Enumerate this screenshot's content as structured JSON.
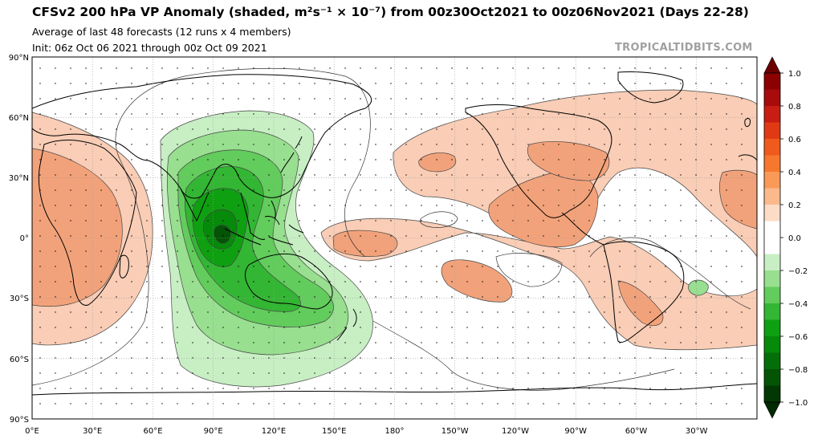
{
  "header": {
    "title": "CFSv2 200 hPa VP Anomaly (shaded, m²s⁻¹ × 10⁻⁷) from 00z30Oct2021 to 00z06Nov2021 (Days 22-28)",
    "subtitle1": "Average of last 48 forecasts (12 runs x 4 members)",
    "subtitle2": "Init: 06z Oct 06 2021 through 00z Oct 09 2021",
    "watermark": "TROPICALTIDBITS.COM"
  },
  "map": {
    "projection": "equirectangular",
    "lon_range": [
      0,
      360
    ],
    "lat_range": [
      -90,
      90
    ],
    "lat_labels": [
      "90°N",
      "60°N",
      "30°N",
      "0°",
      "30°S",
      "60°S",
      "90°S"
    ],
    "lon_labels": [
      "0°E",
      "30°E",
      "60°E",
      "90°E",
      "120°E",
      "150°E",
      "180°",
      "150°W",
      "120°W",
      "90°W",
      "60°W",
      "30°W"
    ],
    "colors": {
      "strong_negative": "#0a8a0a",
      "moderate_negative": "#3fbf3f",
      "weak_negative": "#a7e3a0",
      "weak_positive": "#f9cdb6",
      "moderate_positive": "#f2a27a"
    }
  },
  "colorbar": {
    "labels": [
      "1.0",
      "0.8",
      "0.6",
      "0.4",
      "0.2",
      "0.0",
      "−0.2",
      "−0.4",
      "−0.6",
      "−0.8",
      "−1.0"
    ],
    "colors": [
      "#8b0000",
      "#a80b0b",
      "#c81d12",
      "#e03a14",
      "#f05a1c",
      "#f6782e",
      "#f99a59",
      "#fbb98c",
      "#fddcc7",
      "#ffffff",
      "#ffffff",
      "#c8efc4",
      "#98df90",
      "#62cc5c",
      "#33b633",
      "#0fa012",
      "#068a0a",
      "#046f08",
      "#035405",
      "#023803"
    ]
  }
}
